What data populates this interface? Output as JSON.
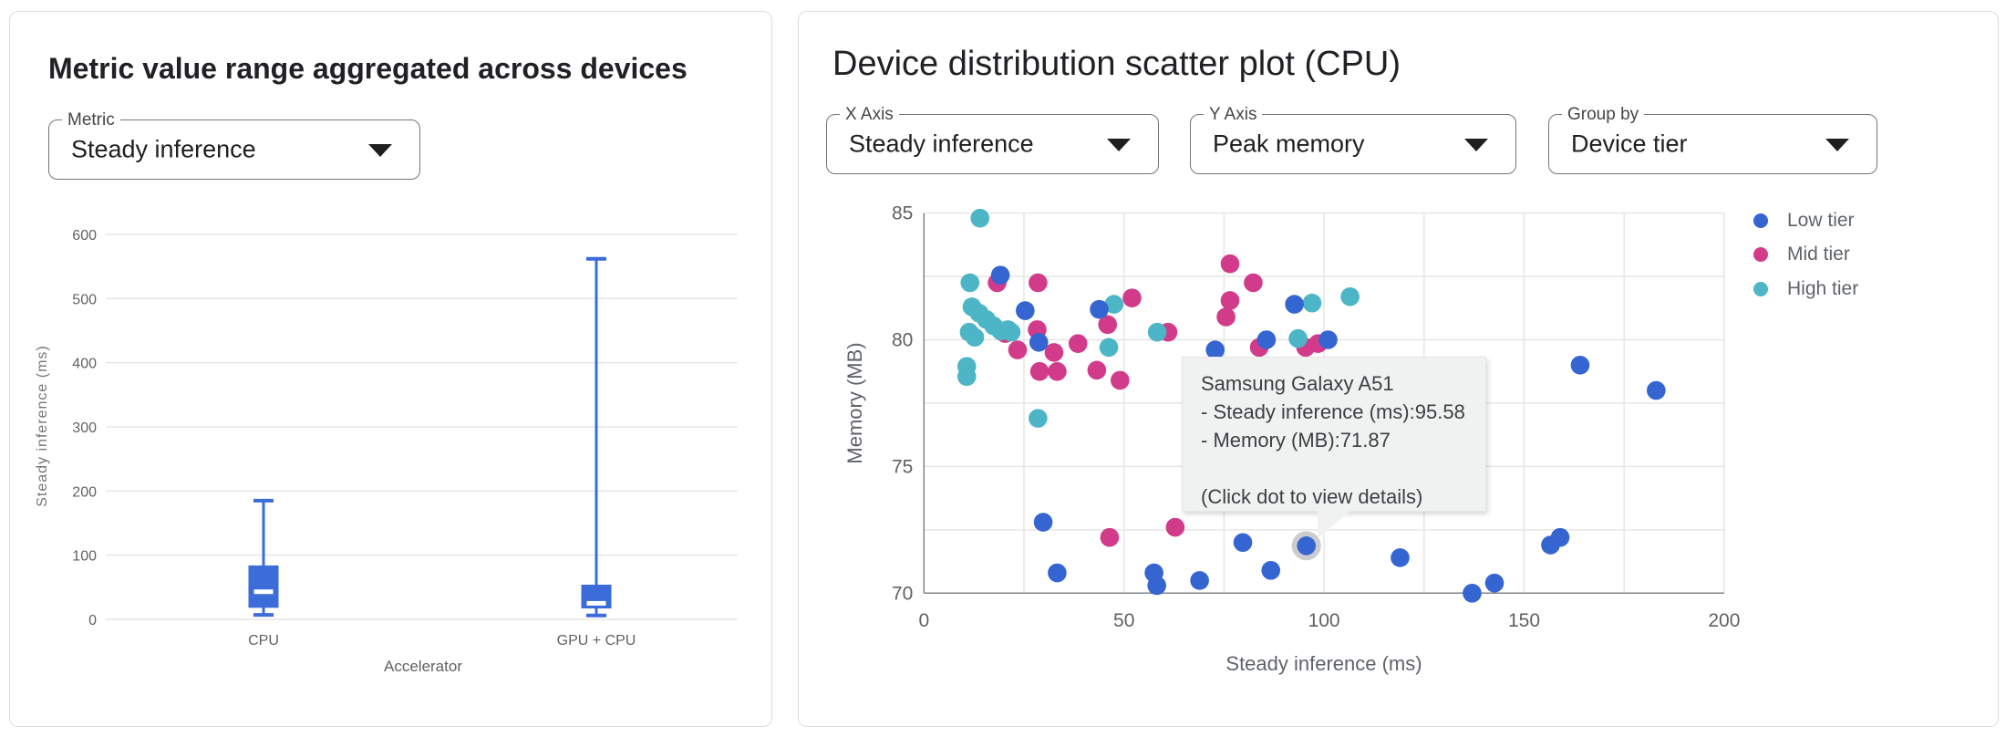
{
  "colors": {
    "low_tier": "#3465d1",
    "mid_tier": "#d23b8a",
    "high_tier": "#4cb6c6",
    "box": "#3b6cd9",
    "gridline": "#e6e6e6",
    "axis_line": "#80868b",
    "tick_text": "#616161"
  },
  "left_card": {
    "title": "Metric value range aggregated across devices",
    "metric_select": {
      "label": "Metric",
      "value": "Steady inference"
    }
  },
  "right_card": {
    "title": "Device distribution scatter plot (CPU)",
    "x_axis_select": {
      "label": "X Axis",
      "value": "Steady inference"
    },
    "y_axis_select": {
      "label": "Y Axis",
      "value": "Peak memory"
    },
    "group_by_select": {
      "label": "Group by",
      "value": "Device tier"
    },
    "tooltip": {
      "title": "Samsung Galaxy A51",
      "line1": "- Steady inference (ms):95.58",
      "line2": "- Memory (MB):71.87",
      "hint": "(Click dot to view details)"
    }
  },
  "chart_data": [
    {
      "type": "boxplot",
      "title": "",
      "xlabel": "Accelerator",
      "ylabel": "Steady inference (ms)",
      "ylim": [
        0,
        600
      ],
      "yticks": [
        0,
        100,
        200,
        300,
        400,
        500,
        600
      ],
      "grid": true,
      "categories": [
        "CPU",
        "GPU + CPU"
      ],
      "series": [
        {
          "category": "CPU",
          "min": 7,
          "q1": 18,
          "median": 43,
          "q3": 84,
          "max": 185
        },
        {
          "category": "GPU + CPU",
          "min": 6,
          "q1": 17,
          "median": 25,
          "q3": 54,
          "max": 562
        }
      ]
    },
    {
      "type": "scatter",
      "title": "",
      "xlabel": "Steady inference (ms)",
      "ylabel": "Memory (MB)",
      "xlim": [
        0,
        200
      ],
      "ylim": [
        70,
        85
      ],
      "xticks": [
        0,
        50,
        100,
        150,
        200
      ],
      "yticks": [
        70,
        75,
        80,
        85
      ],
      "x_minor_step": 25,
      "y_minor_step": 2.5,
      "grid": true,
      "legend_position": "top-right-outside",
      "series": [
        {
          "name": "Low tier",
          "color": "#3465d1",
          "points": [
            [
              19.1,
              82.55
            ],
            [
              25.3,
              81.15
            ],
            [
              28.7,
              79.9
            ],
            [
              43.8,
              81.2
            ],
            [
              72.8,
              79.6
            ],
            [
              85.6,
              80.0
            ],
            [
              92.6,
              81.4
            ],
            [
              101,
              80.0
            ],
            [
              164,
              79.0
            ],
            [
              183,
              78.0
            ],
            [
              29.8,
              72.8
            ],
            [
              33.3,
              70.8
            ],
            [
              57.5,
              70.8
            ],
            [
              58.2,
              70.3
            ],
            [
              68.9,
              70.5
            ],
            [
              79.7,
              72.0
            ],
            [
              86.7,
              70.9
            ],
            [
              95.58,
              71.87
            ],
            [
              119,
              71.4
            ],
            [
              137,
              70.0
            ],
            [
              142.6,
              70.4
            ],
            [
              156.6,
              71.9
            ],
            [
              159,
              72.2
            ]
          ]
        },
        {
          "name": "Mid tier",
          "color": "#d23b8a",
          "points": [
            [
              18.3,
              82.25
            ],
            [
              28.5,
              82.25
            ],
            [
              20.3,
              80.25
            ],
            [
              23.4,
              79.6
            ],
            [
              28.3,
              80.4
            ],
            [
              32.5,
              79.5
            ],
            [
              28.9,
              78.75
            ],
            [
              33.3,
              78.75
            ],
            [
              38.5,
              79.85
            ],
            [
              45.9,
              80.6
            ],
            [
              43.2,
              78.8
            ],
            [
              52,
              81.65
            ],
            [
              49,
              78.4
            ],
            [
              61,
              80.3
            ],
            [
              76.5,
              83.0
            ],
            [
              76.5,
              81.55
            ],
            [
              75.5,
              80.9
            ],
            [
              82.3,
              82.25
            ],
            [
              83.8,
              79.7
            ],
            [
              95.4,
              79.7
            ],
            [
              98.5,
              79.85
            ],
            [
              46.4,
              72.2
            ],
            [
              62.8,
              72.6
            ]
          ]
        },
        {
          "name": "High tier",
          "color": "#4cb6c6",
          "points": [
            [
              14,
              84.8
            ],
            [
              11.5,
              82.25
            ],
            [
              12,
              81.3
            ],
            [
              13.8,
              81.05
            ],
            [
              15.6,
              80.8
            ],
            [
              17.4,
              80.55
            ],
            [
              19.2,
              80.35
            ],
            [
              21,
              80.4
            ],
            [
              21.8,
              80.3
            ],
            [
              11.3,
              80.3
            ],
            [
              12.7,
              80.1
            ],
            [
              10.7,
              78.95
            ],
            [
              10.7,
              78.55
            ],
            [
              47.5,
              81.4
            ],
            [
              46.2,
              79.7
            ],
            [
              58.3,
              80.3
            ],
            [
              93.5,
              80.05
            ],
            [
              97,
              81.45
            ],
            [
              106.5,
              81.7
            ],
            [
              28.5,
              76.9
            ]
          ]
        }
      ],
      "highlight": {
        "series": "Low tier",
        "x": 95.58,
        "y": 71.87,
        "label": "Samsung Galaxy A51"
      }
    }
  ]
}
